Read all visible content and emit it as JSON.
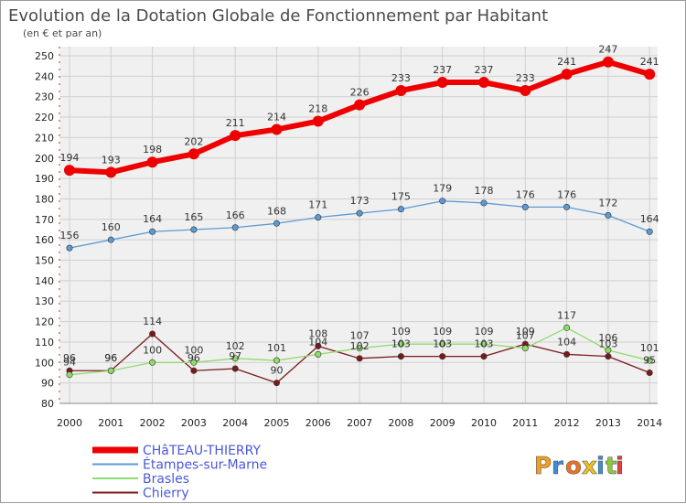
{
  "chart_data": {
    "type": "line",
    "title": "Evolution de la Dotation Globale de Fonctionnement par Habitant",
    "subtitle": "(en € et par an)",
    "categories": [
      "2000",
      "2001",
      "2002",
      "2003",
      "2004",
      "2005",
      "2006",
      "2007",
      "2008",
      "2009",
      "2010",
      "2011",
      "2012",
      "2013",
      "2014"
    ],
    "ylim": [
      80,
      250
    ],
    "yticks": [
      80,
      90,
      100,
      110,
      120,
      130,
      140,
      150,
      160,
      170,
      180,
      190,
      200,
      210,
      220,
      230,
      240,
      250
    ],
    "grid": true,
    "legend_position": "bottom-left",
    "series": [
      {
        "name": "CHâTEAU-THIERRY",
        "color": "#ee0000",
        "values": [
          194,
          193,
          198,
          202,
          211,
          214,
          218,
          226,
          233,
          237,
          237,
          233,
          241,
          247,
          241
        ]
      },
      {
        "name": "Étampes-sur-Marne",
        "color": "#5b9bd5",
        "values": [
          156,
          160,
          164,
          165,
          166,
          168,
          171,
          173,
          175,
          179,
          178,
          176,
          176,
          172,
          164
        ]
      },
      {
        "name": "Brasles",
        "color": "#8fdc6a",
        "values": [
          94,
          96,
          100,
          100,
          102,
          101,
          104,
          107,
          109,
          109,
          109,
          107,
          117,
          106,
          101
        ]
      },
      {
        "name": "Chierry",
        "color": "#7a1a1a",
        "values": [
          96,
          96,
          114,
          96,
          97,
          90,
          108,
          102,
          103,
          103,
          103,
          109,
          104,
          103,
          95
        ]
      }
    ]
  },
  "logo": {
    "text": "Proxiti",
    "colors": [
      "#f0a020",
      "#3a8fd8",
      "#f07020",
      "#f0c020",
      "#3a8fd8",
      "#8fc840",
      "#e04040"
    ]
  }
}
